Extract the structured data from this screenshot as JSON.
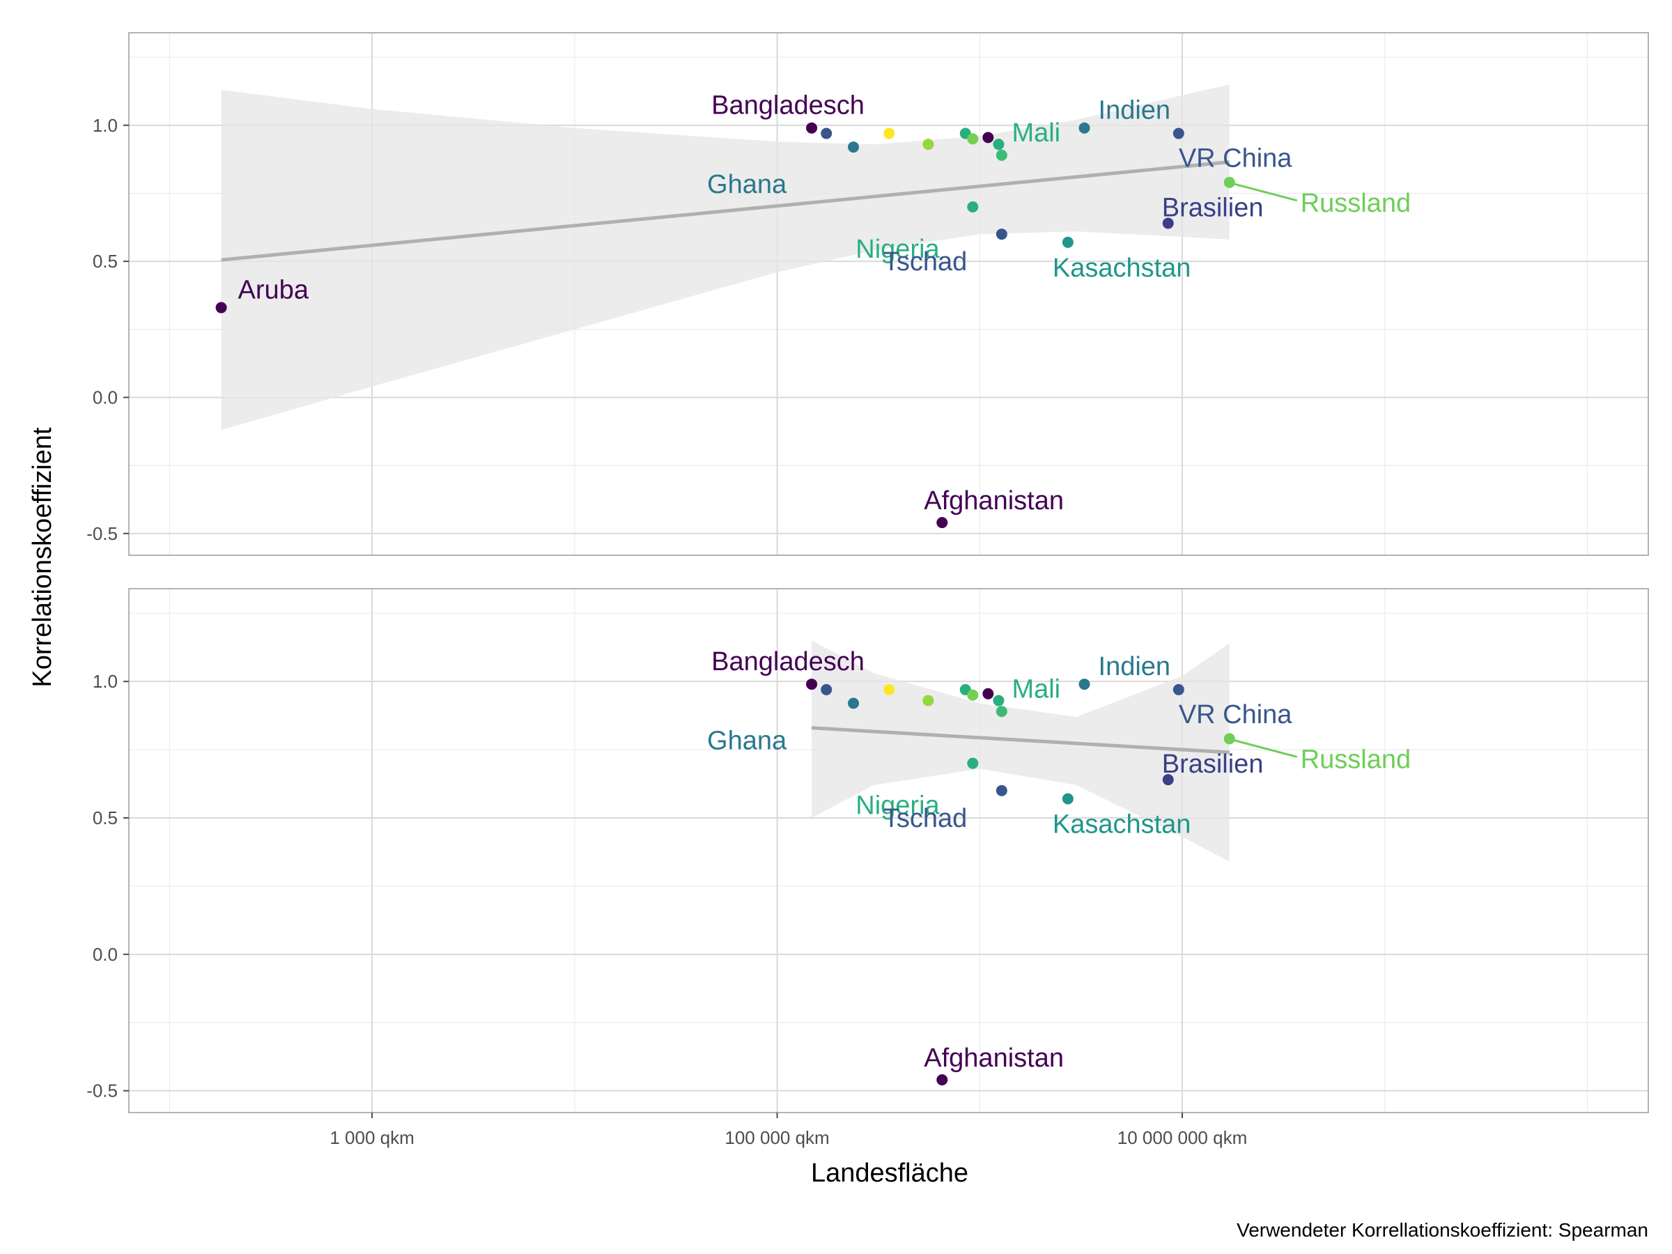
{
  "chart_data": {
    "type": "scatter",
    "xlabel": "Landesfläche",
    "ylabel": "Korrelationskoeffizient",
    "caption": "Verwendeter Korrellationskoeffizient: Spearman",
    "x_scale": "log10",
    "xlim": [
      63,
      2000000000
    ],
    "ylim": [
      -0.58,
      1.34
    ],
    "x_ticks": [
      {
        "value": 1000,
        "label": "1 000 qkm"
      },
      {
        "value": 100000,
        "label": "100 000 qkm"
      },
      {
        "value": 10000000,
        "label": "10 000 000 qkm"
      }
    ],
    "y_ticks": [
      {
        "value": -0.5,
        "label": "-0.5"
      },
      {
        "value": 0.0,
        "label": "0.0"
      },
      {
        "value": 0.5,
        "label": "0.5"
      },
      {
        "value": 1.0,
        "label": "1.0"
      }
    ],
    "grid": true,
    "legend": "none",
    "panels": [
      {
        "points": [
          {
            "x": 180,
            "y": 0.33,
            "color": "#440154",
            "label": "Aruba"
          },
          {
            "x": 148000,
            "y": 0.99,
            "color": "#440154",
            "label": "Bangladesch"
          },
          {
            "x": 175000,
            "y": 0.97,
            "color": "#39568c",
            "label": ""
          },
          {
            "x": 238000,
            "y": 0.92,
            "color": "#2a788e",
            "label": "Ghana"
          },
          {
            "x": 357000,
            "y": 0.97,
            "color": "#fde725",
            "label": ""
          },
          {
            "x": 557000,
            "y": 0.93,
            "color": "#95d840",
            "label": ""
          },
          {
            "x": 652000,
            "y": -0.46,
            "color": "#440154",
            "label": "Afghanistan"
          },
          {
            "x": 850000,
            "y": 0.97,
            "color": "#29af7f",
            "label": ""
          },
          {
            "x": 924000,
            "y": 0.95,
            "color": "#73d055",
            "label": ""
          },
          {
            "x": 924000,
            "y": 0.7,
            "color": "#29af7f",
            "label": "Nigeria"
          },
          {
            "x": 1100000,
            "y": 0.955,
            "color": "#440154",
            "label": ""
          },
          {
            "x": 1240000,
            "y": 0.93,
            "color": "#29af7f",
            "label": "Mali"
          },
          {
            "x": 1284000,
            "y": 0.6,
            "color": "#39568c",
            "label": "Tschad"
          },
          {
            "x": 1284000,
            "y": 0.89,
            "color": "#3cbb75",
            "label": ""
          },
          {
            "x": 2725000,
            "y": 0.57,
            "color": "#1f968b",
            "label": "Kasachstan"
          },
          {
            "x": 3287000,
            "y": 0.99,
            "color": "#2a788e",
            "label": "Indien"
          },
          {
            "x": 8516000,
            "y": 0.64,
            "color": "#3a3f86",
            "label": "Brasilien"
          },
          {
            "x": 9597000,
            "y": 0.97,
            "color": "#39568c",
            "label": "VR China"
          },
          {
            "x": 17098000,
            "y": 0.79,
            "color": "#6ece58",
            "label": "Russland"
          }
        ],
        "trend": {
          "x": [
            180,
            17098000
          ],
          "y": [
            0.505,
            0.865
          ]
        },
        "band": {
          "x": [
            180,
            1000,
            10000,
            100000,
            300000,
            1000000,
            3000000,
            10000000,
            17098000
          ],
          "lower": [
            -0.12,
            0.04,
            0.25,
            0.46,
            0.54,
            0.6,
            0.61,
            0.59,
            0.58
          ],
          "upper": [
            1.13,
            1.06,
            0.99,
            0.94,
            0.93,
            0.96,
            1.02,
            1.11,
            1.15
          ]
        }
      },
      {
        "points": [
          {
            "x": 148000,
            "y": 0.99,
            "color": "#440154",
            "label": "Bangladesch"
          },
          {
            "x": 175000,
            "y": 0.97,
            "color": "#39568c",
            "label": ""
          },
          {
            "x": 238000,
            "y": 0.92,
            "color": "#2a788e",
            "label": "Ghana"
          },
          {
            "x": 357000,
            "y": 0.97,
            "color": "#fde725",
            "label": ""
          },
          {
            "x": 557000,
            "y": 0.93,
            "color": "#95d840",
            "label": ""
          },
          {
            "x": 652000,
            "y": -0.46,
            "color": "#440154",
            "label": "Afghanistan"
          },
          {
            "x": 850000,
            "y": 0.97,
            "color": "#29af7f",
            "label": ""
          },
          {
            "x": 924000,
            "y": 0.95,
            "color": "#73d055",
            "label": ""
          },
          {
            "x": 924000,
            "y": 0.7,
            "color": "#29af7f",
            "label": "Nigeria"
          },
          {
            "x": 1100000,
            "y": 0.955,
            "color": "#440154",
            "label": ""
          },
          {
            "x": 1240000,
            "y": 0.93,
            "color": "#29af7f",
            "label": "Mali"
          },
          {
            "x": 1284000,
            "y": 0.6,
            "color": "#39568c",
            "label": "Tschad"
          },
          {
            "x": 1284000,
            "y": 0.89,
            "color": "#3cbb75",
            "label": ""
          },
          {
            "x": 2725000,
            "y": 0.57,
            "color": "#1f968b",
            "label": "Kasachstan"
          },
          {
            "x": 3287000,
            "y": 0.99,
            "color": "#2a788e",
            "label": "Indien"
          },
          {
            "x": 8516000,
            "y": 0.64,
            "color": "#3a3f86",
            "label": "Brasilien"
          },
          {
            "x": 9597000,
            "y": 0.97,
            "color": "#39568c",
            "label": "VR China"
          },
          {
            "x": 17098000,
            "y": 0.79,
            "color": "#6ece58",
            "label": "Russland"
          }
        ],
        "trend": {
          "x": [
            148000,
            17098000
          ],
          "y": [
            0.83,
            0.74
          ]
        },
        "band": {
          "x": [
            148000,
            300000,
            1000000,
            3000000,
            10000000,
            17098000
          ],
          "lower": [
            0.5,
            0.62,
            0.68,
            0.62,
            0.43,
            0.34
          ],
          "upper": [
            1.15,
            1.03,
            0.92,
            0.87,
            1.02,
            1.14
          ]
        }
      }
    ]
  }
}
